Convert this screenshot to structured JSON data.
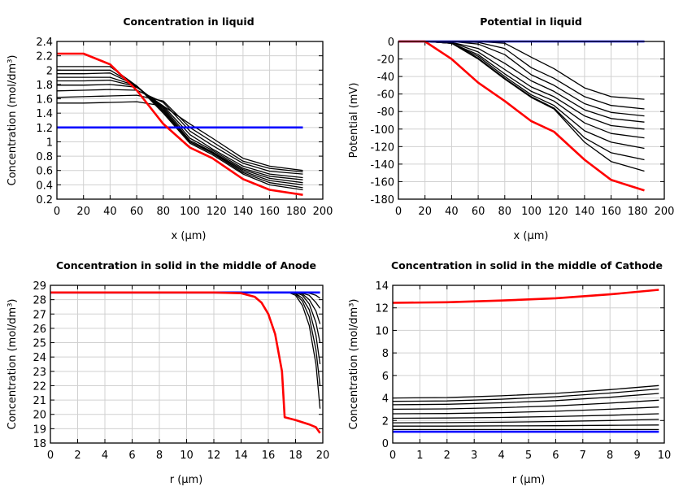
{
  "colors": {
    "last": "#ff0000",
    "initial": "#0000ff",
    "intermediate": "#000000",
    "grid": "#d0d0d0"
  },
  "chart_data": [
    {
      "type": "line",
      "title": "Concentration in liquid",
      "xlabel": "x (µm)",
      "ylabel": "Concentration (mol/dm³)",
      "xlim": [
        0,
        200
      ],
      "ylim": [
        0.2,
        2.4
      ],
      "xticks": [
        0,
        20,
        40,
        60,
        80,
        100,
        120,
        140,
        160,
        180,
        200
      ],
      "yticks": [
        0.2,
        0.4,
        0.6,
        0.8,
        1,
        1.2,
        1.4,
        1.6,
        1.8,
        2,
        2.2,
        2.4
      ],
      "grid": true,
      "x": [
        0,
        20,
        40,
        60,
        80,
        100,
        117,
        140,
        160,
        185
      ],
      "series": [
        {
          "color": "#000000",
          "values": [
            2.05,
            2.05,
            2.05,
            1.78,
            1.4,
            0.98,
            0.82,
            0.55,
            0.4,
            0.33
          ]
        },
        {
          "color": "#000000",
          "values": [
            2.0,
            2.0,
            2.0,
            1.78,
            1.42,
            1.0,
            0.84,
            0.57,
            0.43,
            0.36
          ]
        },
        {
          "color": "#000000",
          "values": [
            1.95,
            1.95,
            1.96,
            1.78,
            1.44,
            1.0,
            0.85,
            0.59,
            0.46,
            0.4
          ]
        },
        {
          "color": "#000000",
          "values": [
            1.9,
            1.9,
            1.9,
            1.78,
            1.46,
            1.02,
            0.86,
            0.61,
            0.49,
            0.43
          ]
        },
        {
          "color": "#000000",
          "values": [
            1.85,
            1.85,
            1.86,
            1.77,
            1.48,
            1.05,
            0.88,
            0.63,
            0.52,
            0.47
          ]
        },
        {
          "color": "#000000",
          "values": [
            1.79,
            1.79,
            1.8,
            1.76,
            1.5,
            1.1,
            0.9,
            0.66,
            0.55,
            0.5
          ]
        },
        {
          "color": "#000000",
          "values": [
            1.71,
            1.72,
            1.73,
            1.72,
            1.55,
            1.15,
            0.95,
            0.7,
            0.59,
            0.55
          ]
        },
        {
          "color": "#000000",
          "values": [
            1.62,
            1.63,
            1.64,
            1.65,
            1.57,
            1.2,
            1.0,
            0.73,
            0.63,
            0.58
          ]
        },
        {
          "color": "#000000",
          "values": [
            1.54,
            1.54,
            1.55,
            1.56,
            1.5,
            1.25,
            1.05,
            0.77,
            0.66,
            0.6
          ]
        },
        {
          "color": "#0000ff",
          "values": [
            1.2,
            1.2,
            1.2,
            1.2,
            1.2,
            1.2,
            1.2,
            1.2,
            1.2,
            1.2
          ]
        },
        {
          "color": "#ff0000",
          "values": [
            2.23,
            2.23,
            2.08,
            1.72,
            1.25,
            0.92,
            0.77,
            0.48,
            0.33,
            0.26
          ]
        }
      ]
    },
    {
      "type": "line",
      "title": "Potential in liquid",
      "xlabel": "x (µm)",
      "ylabel": "Potential (mV)",
      "xlim": [
        0,
        200
      ],
      "ylim": [
        -180,
        0
      ],
      "xticks": [
        0,
        20,
        40,
        60,
        80,
        100,
        120,
        140,
        160,
        180,
        200
      ],
      "yticks": [
        -180,
        -160,
        -140,
        -120,
        -100,
        -80,
        -60,
        -40,
        -20,
        0
      ],
      "grid": true,
      "x": [
        0,
        20,
        40,
        60,
        80,
        100,
        117,
        140,
        160,
        185
      ],
      "series": [
        {
          "color": "#000000",
          "values": [
            0,
            0,
            0,
            0,
            -2,
            -18,
            -31,
            -53,
            -63,
            -66
          ]
        },
        {
          "color": "#000000",
          "values": [
            0,
            0,
            0,
            -1,
            -8,
            -30,
            -42,
            -63,
            -73,
            -77
          ]
        },
        {
          "color": "#000000",
          "values": [
            0,
            0,
            0,
            -3,
            -15,
            -38,
            -50,
            -71,
            -81,
            -85
          ]
        },
        {
          "color": "#000000",
          "values": [
            0,
            0,
            -1,
            -8,
            -25,
            -45,
            -57,
            -78,
            -88,
            -92
          ]
        },
        {
          "color": "#000000",
          "values": [
            0,
            0,
            -1,
            -12,
            -32,
            -52,
            -63,
            -85,
            -96,
            -100
          ]
        },
        {
          "color": "#000000",
          "values": [
            0,
            0,
            -2,
            -15,
            -37,
            -57,
            -68,
            -93,
            -105,
            -110
          ]
        },
        {
          "color": "#000000",
          "values": [
            0,
            0,
            -2,
            -17,
            -40,
            -61,
            -73,
            -102,
            -115,
            -122
          ]
        },
        {
          "color": "#000000",
          "values": [
            0,
            0,
            -2,
            -19,
            -42,
            -63,
            -76,
            -110,
            -127,
            -135
          ]
        },
        {
          "color": "#000000",
          "values": [
            0,
            0,
            -2,
            -20,
            -43,
            -64,
            -77,
            -115,
            -137,
            -148
          ]
        },
        {
          "color": "#0000ff",
          "values": [
            0,
            0,
            0,
            0,
            0,
            0,
            0,
            0,
            0,
            0
          ]
        },
        {
          "color": "#ff0000",
          "values": [
            0,
            0,
            -20,
            -47,
            -68,
            -91,
            -103,
            -135,
            -158,
            -170
          ]
        }
      ]
    },
    {
      "type": "line",
      "title": "Concentration in solid in the middle of Anode",
      "xlabel": "r (µm)",
      "ylabel": "Concentration (mol/dm³)",
      "xlim": [
        0,
        20
      ],
      "ylim": [
        18,
        29
      ],
      "xticks": [
        0,
        2,
        4,
        6,
        8,
        10,
        12,
        14,
        16,
        18,
        20
      ],
      "yticks": [
        18,
        19,
        20,
        21,
        22,
        23,
        24,
        25,
        26,
        27,
        28,
        29
      ],
      "grid": true,
      "series": [
        {
          "color": "#000000",
          "x": [
            0,
            17.5,
            18,
            18.5,
            19,
            19.5,
            19.8
          ],
          "values": [
            28.5,
            28.5,
            28.3,
            27.6,
            26.2,
            23.5,
            20.4
          ]
        },
        {
          "color": "#000000",
          "x": [
            0,
            17.5,
            18,
            18.5,
            19,
            19.5,
            19.8
          ],
          "values": [
            28.5,
            28.5,
            28.4,
            27.9,
            26.8,
            24.5,
            22.0
          ]
        },
        {
          "color": "#000000",
          "x": [
            0,
            17.5,
            18,
            18.5,
            19,
            19.5,
            19.8
          ],
          "values": [
            28.5,
            28.5,
            28.45,
            28.1,
            27.3,
            25.5,
            23.5
          ]
        },
        {
          "color": "#000000",
          "x": [
            0,
            17.5,
            18,
            18.5,
            19,
            19.5,
            19.8
          ],
          "values": [
            28.5,
            28.5,
            28.5,
            28.3,
            27.7,
            26.4,
            25.0
          ]
        },
        {
          "color": "#000000",
          "x": [
            0,
            17.5,
            18,
            18.5,
            19,
            19.5,
            19.8
          ],
          "values": [
            28.5,
            28.5,
            28.5,
            28.4,
            28.0,
            27.2,
            26.3
          ]
        },
        {
          "color": "#000000",
          "x": [
            0,
            17.5,
            18,
            18.5,
            19,
            19.5,
            19.8
          ],
          "values": [
            28.5,
            28.5,
            28.5,
            28.45,
            28.3,
            27.8,
            27.4
          ]
        },
        {
          "color": "#000000",
          "x": [
            0,
            17.5,
            18,
            18.5,
            19,
            19.5,
            19.8
          ],
          "values": [
            28.5,
            28.5,
            28.5,
            28.5,
            28.45,
            28.3,
            28.1
          ]
        },
        {
          "color": "#0000ff",
          "x": [
            0,
            19.8
          ],
          "values": [
            28.5,
            28.5
          ]
        },
        {
          "color": "#ff0000",
          "x": [
            0,
            12,
            14,
            15,
            15.5,
            16,
            16.5,
            17,
            17.2,
            18,
            19,
            19.5,
            19.8
          ],
          "values": [
            28.5,
            28.5,
            28.45,
            28.2,
            27.8,
            27.0,
            25.6,
            23.0,
            19.8,
            19.6,
            19.3,
            19.1,
            18.7
          ]
        }
      ]
    },
    {
      "type": "line",
      "title": "Concentration in solid in the middle of Cathode",
      "xlabel": "r (µm)",
      "ylabel": "Concentration (mol/dm³)",
      "xlim": [
        0,
        10
      ],
      "ylim": [
        0,
        14
      ],
      "xticks": [
        0,
        1,
        2,
        3,
        4,
        5,
        6,
        7,
        8,
        9,
        10
      ],
      "yticks": [
        0,
        2,
        4,
        6,
        8,
        10,
        12,
        14
      ],
      "grid": true,
      "x": [
        0,
        2,
        4,
        6,
        8,
        9.8
      ],
      "series": [
        {
          "color": "#000000",
          "values": [
            4.0,
            4.04,
            4.19,
            4.41,
            4.74,
            5.1
          ]
        },
        {
          "color": "#000000",
          "values": [
            3.7,
            3.74,
            3.89,
            4.11,
            4.44,
            4.8
          ]
        },
        {
          "color": "#000000",
          "values": [
            3.4,
            3.44,
            3.57,
            3.77,
            4.07,
            4.4
          ]
        },
        {
          "color": "#000000",
          "values": [
            3.0,
            3.03,
            3.14,
            3.3,
            3.54,
            3.8
          ]
        },
        {
          "color": "#000000",
          "values": [
            2.6,
            2.62,
            2.7,
            2.82,
            3.0,
            3.2
          ]
        },
        {
          "color": "#000000",
          "values": [
            2.2,
            2.22,
            2.27,
            2.35,
            2.47,
            2.6
          ]
        },
        {
          "color": "#000000",
          "values": [
            1.8,
            1.81,
            1.85,
            1.91,
            2.0,
            2.1
          ]
        },
        {
          "color": "#000000",
          "values": [
            1.5,
            1.5,
            1.52,
            1.54,
            1.57,
            1.6
          ]
        },
        {
          "color": "#000000",
          "values": [
            1.2,
            1.2,
            1.2,
            1.2,
            1.2,
            1.2
          ]
        },
        {
          "color": "#0000ff",
          "values": [
            1.0,
            1.0,
            1.0,
            1.0,
            1.0,
            1.0
          ]
        },
        {
          "color": "#ff0000",
          "values": [
            12.45,
            12.5,
            12.65,
            12.85,
            13.2,
            13.6
          ]
        }
      ]
    }
  ]
}
